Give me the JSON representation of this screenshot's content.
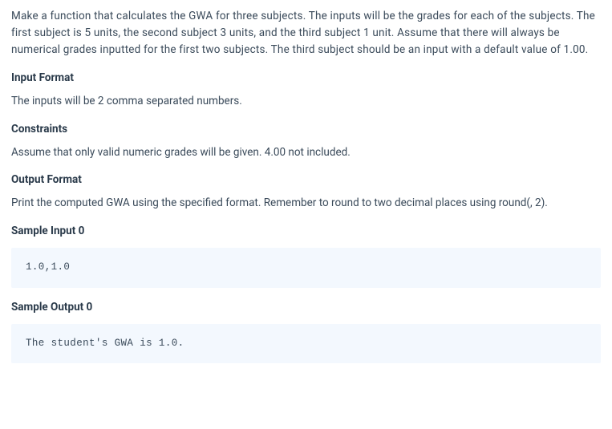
{
  "problem_description": "Make a function that calculates the GWA for three subjects. The inputs will be the grades for each of the subjects. The first subject is 5 units, the second subject 3 units, and the third subject 1 unit. Assume that there will always be  numerical grades inputted for the first two subjects.  The third subject should be an input with a default value of 1.00.",
  "sections": {
    "input_format": {
      "heading": "Input Format",
      "text": "The inputs will be 2 comma separated numbers."
    },
    "constraints": {
      "heading": "Constraints",
      "text": "Assume that only valid numeric grades will be given. 4.00 not included."
    },
    "output_format": {
      "heading": "Output Format",
      "text": "Print the computed GWA using the specified format. Remember to round to two decimal places using round(, 2)."
    },
    "sample_input_0": {
      "heading": "Sample Input 0",
      "code": "1.0,1.0"
    },
    "sample_output_0": {
      "heading": "Sample Output 0",
      "code": "The student's GWA is 1.0."
    }
  },
  "styling": {
    "body_bg": "#ffffff",
    "text_color": "#3a4a5a",
    "heading_color": "#2a3a4a",
    "code_bg": "#f3f8fe",
    "base_font_size": 13.5,
    "code_font_size": 12.5,
    "line_height": 1.55
  }
}
